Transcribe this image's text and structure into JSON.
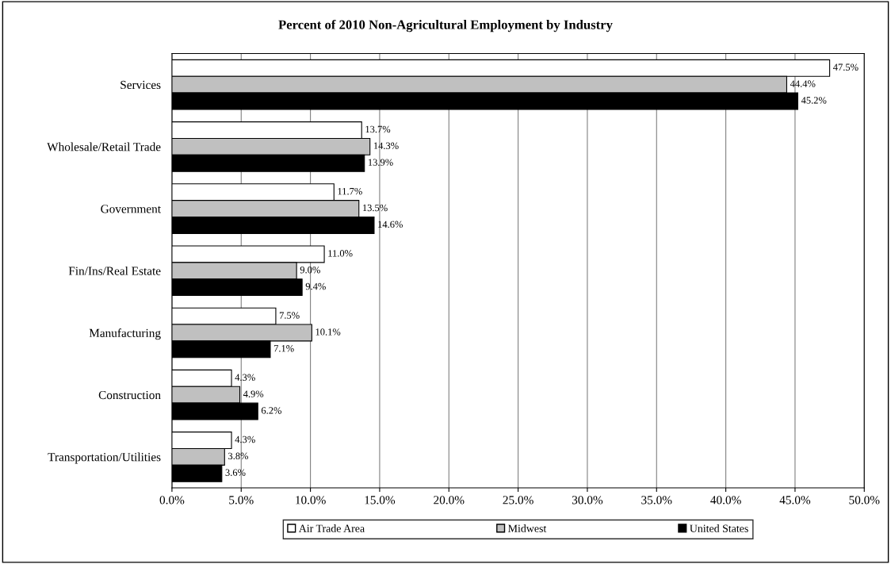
{
  "chart_data": {
    "type": "bar",
    "orientation": "horizontal",
    "title": "Percent of 2010 Non-Agricultural Employment by Industry",
    "categories": [
      "Services",
      "Wholesale/Retail Trade",
      "Government",
      "Fin/Ins/Real Estate",
      "Manufacturing",
      "Construction",
      "Transportation/Utilities"
    ],
    "series": [
      {
        "name": "Air Trade Area",
        "color": "#ffffff",
        "values": [
          47.5,
          13.7,
          11.7,
          11.0,
          7.5,
          4.3,
          4.3
        ],
        "value_labels": [
          "47.5%",
          "13.7%",
          "11.7%",
          "11.0%",
          "7.5%",
          "4.3%",
          "4.3%"
        ]
      },
      {
        "name": "Midwest",
        "color": "#c0c0c0",
        "values": [
          44.4,
          14.3,
          13.5,
          9.0,
          10.1,
          4.9,
          3.8
        ],
        "value_labels": [
          "44.4%",
          "14.3%",
          "13.5%",
          "9.0%",
          "10.1%",
          "4.9%",
          "3.8%"
        ]
      },
      {
        "name": "United States",
        "color": "#000000",
        "values": [
          45.2,
          13.9,
          14.6,
          9.4,
          7.1,
          6.2,
          3.6
        ],
        "value_labels": [
          "45.2%",
          "13.9%",
          "14.6%",
          "9.4%",
          "7.1%",
          "6.2%",
          "3.6%"
        ]
      }
    ],
    "xlim": [
      0,
      50
    ],
    "xticks": [
      {
        "value": 0,
        "label": "0.0%"
      },
      {
        "value": 5,
        "label": "5.0%"
      },
      {
        "value": 10,
        "label": "10.0%"
      },
      {
        "value": 15,
        "label": "15.0%"
      },
      {
        "value": 20,
        "label": "20.0%"
      },
      {
        "value": 25,
        "label": "25.0%"
      },
      {
        "value": 30,
        "label": "30.0%"
      },
      {
        "value": 35,
        "label": "35.0%"
      },
      {
        "value": 40,
        "label": "40.0%"
      },
      {
        "value": 45,
        "label": "45.0%"
      },
      {
        "value": 50,
        "label": "50.0%"
      }
    ],
    "grid": "x",
    "legend": "bottom"
  }
}
